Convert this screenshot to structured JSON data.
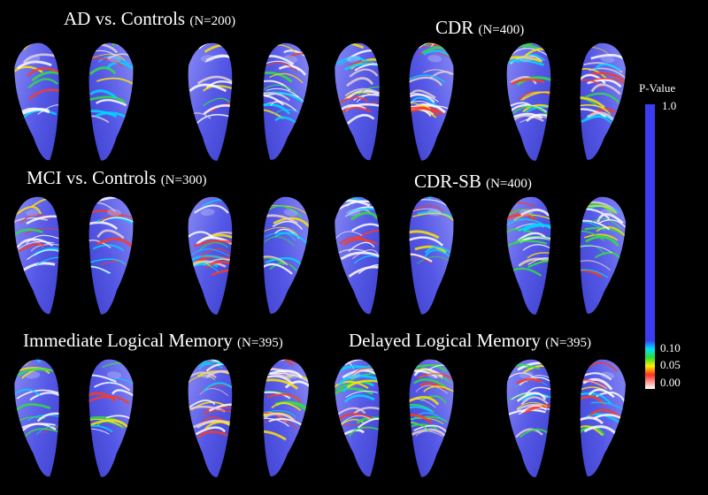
{
  "panels": [
    {
      "title": "AD vs. Controls",
      "n": "(N=200)"
    },
    {
      "title": "CDR",
      "n": "(N=400)"
    },
    {
      "title": "MCI vs. Controls",
      "n": "(N=300)"
    },
    {
      "title": "CDR-SB",
      "n": "(N=400)"
    },
    {
      "title": "Immediate Logical Memory",
      "n": "(N=395)"
    },
    {
      "title": "Delayed Logical Memory",
      "n": "(N=395)"
    }
  ],
  "colorbar": {
    "label": "P-Value",
    "ticks": [
      "1.0",
      "0.10",
      "0.05",
      "0.00"
    ]
  }
}
